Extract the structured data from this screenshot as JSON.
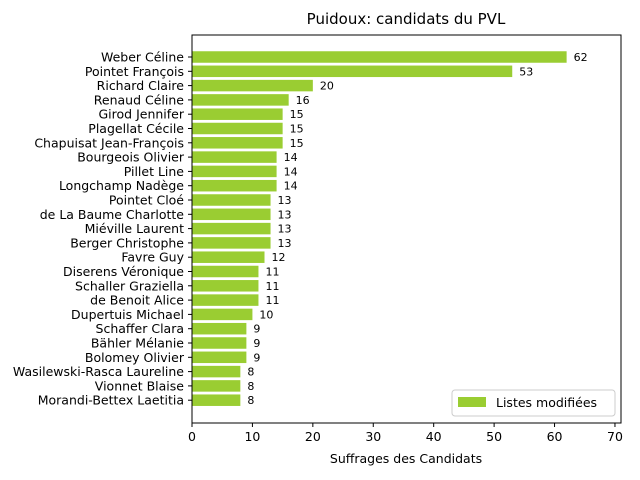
{
  "chart_data": {
    "type": "bar",
    "orientation": "horizontal",
    "title": "Puidoux: candidats du PVL",
    "xlabel": "Suffrages des Candidats",
    "ylabel": "",
    "xlim": [
      0,
      71
    ],
    "xticks": [
      0,
      10,
      20,
      30,
      40,
      50,
      60,
      70
    ],
    "categories": [
      "Weber Céline",
      "Pointet François",
      "Richard Claire",
      "Renaud Céline",
      "Girod Jennifer",
      "Plagellat Cécile",
      "Chapuisat Jean-François",
      "Bourgeois Olivier",
      "Pillet Line",
      "Longchamp Nadège",
      "Pointet Cloé",
      "de La Baume Charlotte",
      "Miéville Laurent",
      "Berger Christophe",
      "Favre Guy",
      "Diserens Véronique",
      "Schaller Graziella",
      "de Benoit Alice",
      "Dupertuis Michael",
      "Schaffer Clara",
      "Bähler Mélanie",
      "Bolomey Olivier",
      "Wasilewski-Rasca Laureline",
      "Vionnet Blaise",
      "Morandi-Bettex Laetitia"
    ],
    "series": [
      {
        "name": "Listes modifiées",
        "color": "#9acd32",
        "values": [
          62,
          53,
          20,
          16,
          15,
          15,
          15,
          14,
          14,
          14,
          13,
          13,
          13,
          13,
          12,
          11,
          11,
          11,
          10,
          9,
          9,
          9,
          8,
          8,
          8
        ]
      }
    ],
    "data_labels": true,
    "grid": false,
    "legend_position": "lower right"
  }
}
